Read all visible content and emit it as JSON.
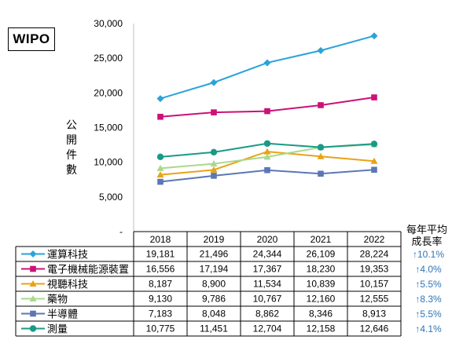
{
  "badge": "WIPO",
  "ylabel": "公開件數",
  "rate_header": [
    "每年平均",
    "成長率"
  ],
  "colors": {
    "運算科技": "#2AA3D9",
    "電子機械能源裝置": "#CC1177",
    "視聽科技": "#E8A317",
    "藥物": "#A9D98D",
    "半導體": "#5B77B5",
    "測量": "#1A9A86"
  },
  "chart_data": {
    "type": "line",
    "categories": [
      "2018",
      "2019",
      "2020",
      "2021",
      "2022"
    ],
    "ylim": [
      0,
      30000
    ],
    "yticks": [
      "-",
      "5,000",
      "10,000",
      "15,000",
      "20,000",
      "25,000",
      "30,000"
    ],
    "grid": false,
    "series": [
      {
        "name": "運算科技",
        "marker": "diamond",
        "values": [
          19181,
          21496,
          24344,
          26109,
          28224
        ],
        "labels": [
          "19,181",
          "21,496",
          "24,344",
          "26,109",
          "28,224"
        ],
        "rate": "↑10.1%"
      },
      {
        "name": "電子機械能源裝置",
        "marker": "square",
        "values": [
          16556,
          17194,
          17367,
          18230,
          19353
        ],
        "labels": [
          "16,556",
          "17,194",
          "17,367",
          "18,230",
          "19,353"
        ],
        "rate": "↑4.0%"
      },
      {
        "name": "視聽科技",
        "marker": "triangle",
        "values": [
          8187,
          8900,
          11534,
          10839,
          10157
        ],
        "labels": [
          "8,187",
          "8,900",
          "11,534",
          "10,839",
          "10,157"
        ],
        "rate": "↑5.5%"
      },
      {
        "name": "藥物",
        "marker": "triangle",
        "values": [
          9130,
          9786,
          10767,
          12160,
          12555
        ],
        "labels": [
          "9,130",
          "9,786",
          "10,767",
          "12,160",
          "12,555"
        ],
        "rate": "↑8.3%"
      },
      {
        "name": "半導體",
        "marker": "square",
        "values": [
          7183,
          8048,
          8862,
          8346,
          8913
        ],
        "labels": [
          "7,183",
          "8,048",
          "8,862",
          "8,346",
          "8,913"
        ],
        "rate": "↑5.5%"
      },
      {
        "name": "測量",
        "marker": "circle",
        "values": [
          10775,
          11451,
          12704,
          12158,
          12646
        ],
        "labels": [
          "10,775",
          "11,451",
          "12,704",
          "12,158",
          "12,646"
        ],
        "rate": "↑4.1%"
      }
    ]
  }
}
